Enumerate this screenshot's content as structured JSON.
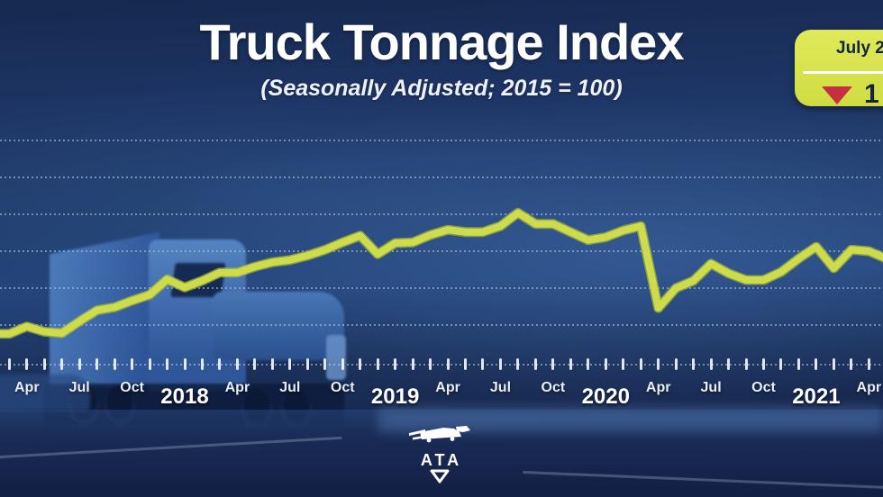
{
  "header": {
    "title": "Truck Tonnage Index",
    "subtitle": "(Seasonally Adjusted; 2015 = 100)"
  },
  "badge": {
    "period_visible": "July 2",
    "value_visible": "1",
    "direction": "down",
    "bg_color": "#d7e24b",
    "text_color": "#14233f",
    "arrow_color": "#c62f3f"
  },
  "footer": {
    "logo_text": "ATA"
  },
  "chart_data": {
    "type": "line",
    "title": "Truck Tonnage Index",
    "subtitle": "(Seasonally Adjusted; 2015 = 100)",
    "line_color": "#cedb4b",
    "line_edge_color": "#a9ba38",
    "grid": "dotted horizontal",
    "legend": "none",
    "ylim": [
      100,
      131
    ],
    "y_gridlines": [
      105,
      110,
      115,
      120,
      125,
      130
    ],
    "series": [
      {
        "name": "Truck Tonnage Index (SA, 2015=100)",
        "x": [
          "Mar-17",
          "Apr-17",
          "May-17",
          "Jun-17",
          "Jul-17",
          "Aug-17",
          "Sep-17",
          "Oct-17",
          "Nov-17",
          "Dec-17",
          "Jan-18",
          "Feb-18",
          "Mar-18",
          "Apr-18",
          "May-18",
          "Jun-18",
          "Jul-18",
          "Aug-18",
          "Sep-18",
          "Oct-18",
          "Nov-18",
          "Dec-18",
          "Jan-19",
          "Feb-19",
          "Mar-19",
          "Apr-19",
          "May-19",
          "Jun-19",
          "Jul-19",
          "Aug-19",
          "Sep-19",
          "Oct-19",
          "Nov-19",
          "Dec-19",
          "Jan-20",
          "Feb-20",
          "Mar-20",
          "Apr-20",
          "May-20",
          "Jun-20",
          "Jul-20",
          "Aug-20",
          "Sep-20",
          "Oct-20",
          "Nov-20",
          "Dec-20",
          "Jan-21",
          "Feb-21",
          "Mar-21",
          "Apr-21",
          "May-21"
        ],
        "values": [
          103.8,
          104.8,
          104.1,
          103.9,
          105.5,
          107.0,
          107.4,
          108.3,
          109.1,
          111.2,
          110.1,
          111.0,
          112.1,
          112.1,
          112.9,
          113.5,
          113.8,
          114.4,
          115.2,
          116.2,
          117.1,
          114.6,
          116.1,
          116.2,
          117.2,
          117.9,
          117.6,
          117.6,
          118.4,
          120.2,
          118.7,
          118.7,
          117.6,
          116.5,
          116.9,
          117.8,
          118.4,
          107.3,
          110.0,
          111.0,
          113.3,
          112.0,
          111.1,
          111.1,
          112.2,
          114.0,
          115.6,
          112.7,
          115.2,
          115.0,
          114.0
        ]
      }
    ],
    "x_tick_labels": [
      {
        "label": "Apr",
        "k": 1,
        "year": false
      },
      {
        "label": "Jul",
        "k": 4,
        "year": false
      },
      {
        "label": "Oct",
        "k": 7,
        "year": false
      },
      {
        "label": "2018",
        "k": 10,
        "year": true
      },
      {
        "label": "Apr",
        "k": 13,
        "year": false
      },
      {
        "label": "Jul",
        "k": 16,
        "year": false
      },
      {
        "label": "Oct",
        "k": 19,
        "year": false
      },
      {
        "label": "2019",
        "k": 22,
        "year": true
      },
      {
        "label": "Apr",
        "k": 25,
        "year": false
      },
      {
        "label": "Jul",
        "k": 28,
        "year": false
      },
      {
        "label": "Oct",
        "k": 31,
        "year": false
      },
      {
        "label": "2020",
        "k": 34,
        "year": true
      },
      {
        "label": "Apr",
        "k": 37,
        "year": false
      },
      {
        "label": "Jul",
        "k": 40,
        "year": false
      },
      {
        "label": "Oct",
        "k": 43,
        "year": false
      },
      {
        "label": "2021",
        "k": 46,
        "year": true
      },
      {
        "label": "Apr",
        "k": 49,
        "year": false
      }
    ]
  }
}
